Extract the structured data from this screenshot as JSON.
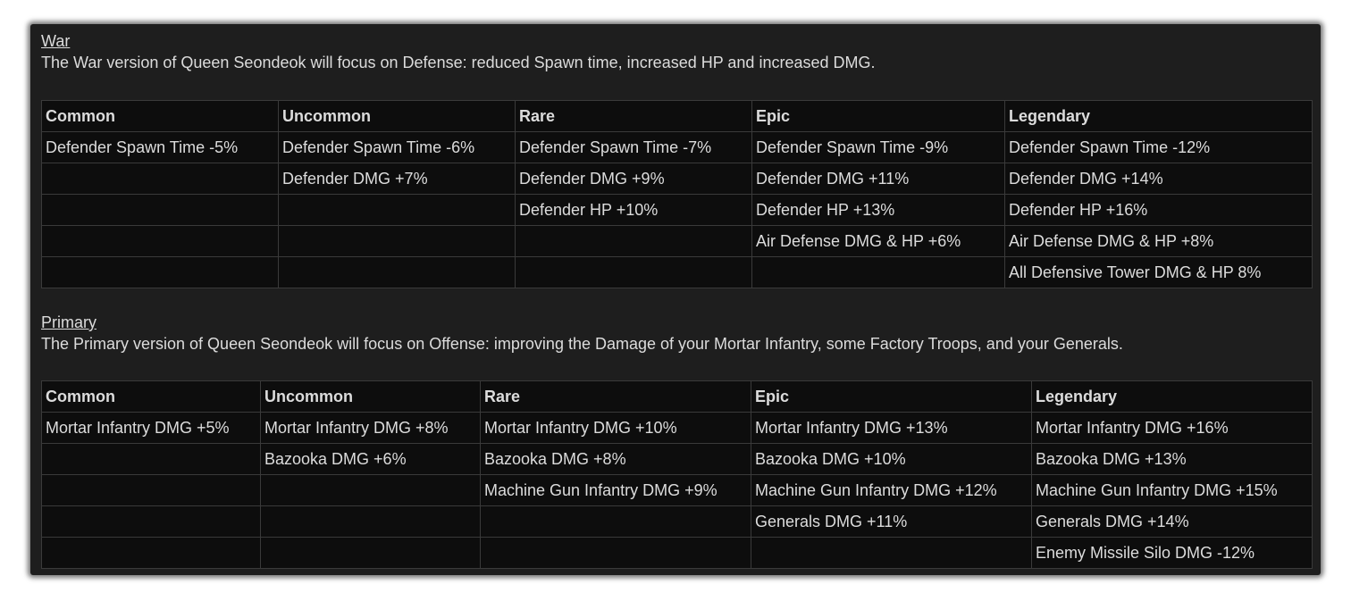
{
  "war": {
    "title": "War",
    "description": "The War version of Queen Seondeok will focus on Defense: reduced Spawn time, increased HP and increased DMG.",
    "headers": [
      "Common",
      "Uncommon",
      "Rare",
      "Epic",
      "Legendary"
    ],
    "rows": [
      [
        "Defender Spawn Time -5%",
        "Defender Spawn Time -6%",
        "Defender Spawn Time -7%",
        "Defender Spawn Time -9%",
        "Defender Spawn Time -12%"
      ],
      [
        "",
        "Defender DMG +7%",
        "Defender DMG +9%",
        "Defender DMG +11%",
        "Defender DMG +14%"
      ],
      [
        "",
        "",
        "Defender HP +10%",
        "Defender HP +13%",
        "Defender HP +16%"
      ],
      [
        "",
        "",
        "",
        "Air Defense DMG & HP +6%",
        "Air Defense DMG & HP +8%"
      ],
      [
        "",
        "",
        "",
        "",
        "All Defensive Tower DMG & HP 8%"
      ]
    ]
  },
  "primary": {
    "title": "Primary",
    "description": "The Primary version of Queen Seondeok will focus on Offense: improving the Damage of your Mortar Infantry, some Factory Troops, and your Generals.",
    "headers": [
      "Common",
      "Uncommon",
      "Rare",
      "Epic",
      "Legendary"
    ],
    "rows": [
      [
        "Mortar Infantry DMG +5%",
        "Mortar Infantry DMG +8%",
        "Mortar Infantry DMG +10%",
        "Mortar Infantry DMG +13%",
        "Mortar Infantry DMG +16%"
      ],
      [
        "",
        "Bazooka DMG +6%",
        "Bazooka DMG +8%",
        "Bazooka DMG +10%",
        "Bazooka DMG +13%"
      ],
      [
        "",
        "",
        "Machine Gun Infantry DMG +9%",
        "Machine Gun Infantry DMG +12%",
        "Machine Gun Infantry DMG +15%"
      ],
      [
        "",
        "",
        "",
        "Generals DMG +11%",
        "Generals DMG +14%"
      ],
      [
        "",
        "",
        "",
        "",
        "Enemy Missile Silo DMG -12%"
      ]
    ]
  }
}
